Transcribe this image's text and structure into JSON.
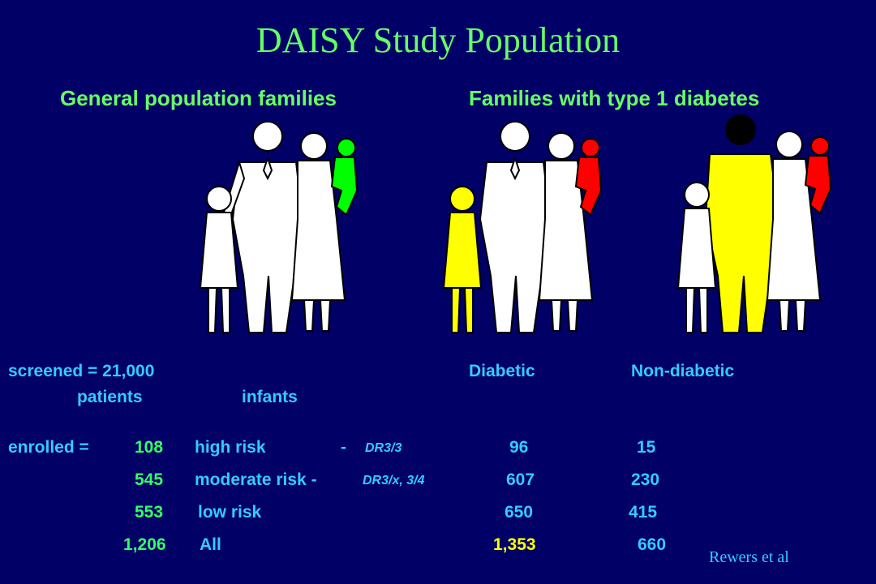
{
  "title": "DAISY Study Population",
  "groups": {
    "general": "General population families",
    "diabetic": "Families with type 1 diabetes"
  },
  "screened": {
    "label": "screened = 21,000",
    "patients": "patients",
    "infants": "infants",
    "diabetic": "Diabetic",
    "non_diabetic": "Non-diabetic"
  },
  "rows": [
    {
      "prefix": "enrolled   =",
      "n": "108",
      "risk": "high risk",
      "dash": "-",
      "dr": "DR3/3",
      "diabetic": "96",
      "nondiabetic": "15"
    },
    {
      "prefix": "",
      "n": "545",
      "risk": "moderate risk -",
      "dash": "",
      "dr": "DR3/x, 3/4",
      "diabetic": "607",
      "nondiabetic": "230"
    },
    {
      "prefix": "",
      "n": "553",
      "risk": "low risk",
      "dash": "",
      "dr": "",
      "diabetic": "650",
      "nondiabetic": "415"
    },
    {
      "prefix": "",
      "n": "1,206",
      "risk": "All",
      "dash": "",
      "dr": "",
      "diabetic": "1,353",
      "nondiabetic": "660"
    }
  ],
  "reference": "Rewers et al",
  "colors": {
    "background": "#000066",
    "title": "#66ff66",
    "label": "#33ccff",
    "highlight_yellow": "#ffff00",
    "infant_green": "#00ff00",
    "infant_red": "#ff0000",
    "affected_yellow": "#ffff00",
    "person_white": "#ffffff"
  },
  "icons": [
    "family-general-icon",
    "family-diabetic-child-icon",
    "family-diabetic-father-icon"
  ]
}
